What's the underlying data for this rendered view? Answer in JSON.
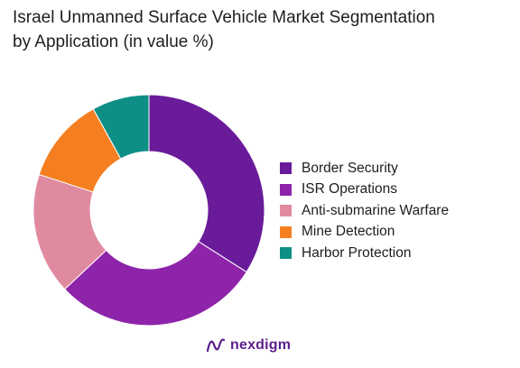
{
  "chart_data": {
    "type": "pie",
    "title": "Israel Unmanned Surface Vehicle Market Segmentation by Application (in value %)",
    "title_lines": [
      "Israel Unmanned Surface Vehicle Market Segmentation",
      "by Application (in value %)"
    ],
    "categories": [
      "Border Security",
      "ISR Operations",
      "Anti-submarine Warfare",
      "Mine Detection",
      "Harbor Protection"
    ],
    "values": [
      34,
      29,
      17,
      12,
      8
    ],
    "unit": "%",
    "donut": true,
    "colors": [
      "#6a1b9a",
      "#8e24aa",
      "#e08aa0",
      "#f57f20",
      "#0e8f86"
    ],
    "legend_position": "right"
  },
  "brand": {
    "logo_text": "nexdigm",
    "logo_icon": "nexdigm-logo-icon",
    "logo_color": "#5a1f8c"
  }
}
